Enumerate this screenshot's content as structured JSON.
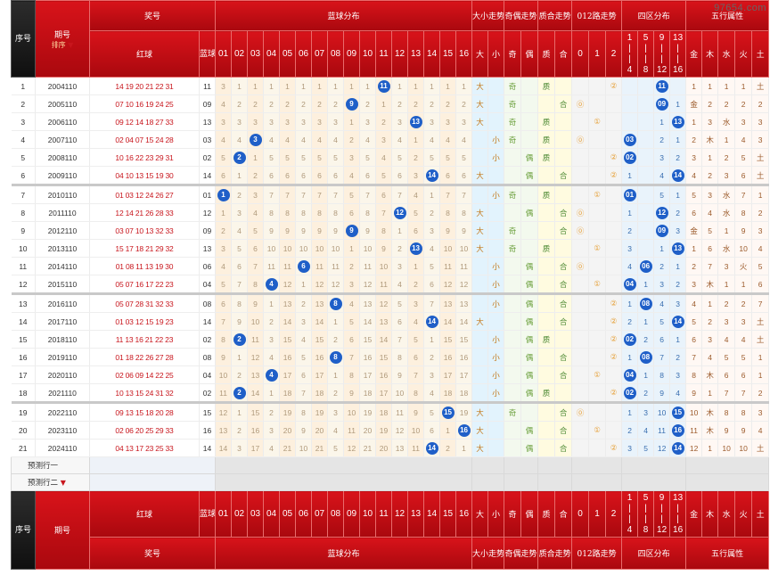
{
  "watermark": "97654.com",
  "header": {
    "seq": "序号",
    "period": "期号",
    "sort": "排序",
    "prize": "奖号",
    "blue_dist": "蓝球分布",
    "size": "大小走势",
    "oddeven": "奇偶走势",
    "prime": "质合走势",
    "road012": "012路走势",
    "zone4": "四区分布",
    "wuxing": "五行属性",
    "red": "红球",
    "blue": "蓝球",
    "big": "大",
    "small": "小",
    "odd": "奇",
    "even": "偶",
    "prime_c": "质",
    "comp_c": "合",
    "r0": "0",
    "r1": "1",
    "r2": "2",
    "z1a": "1",
    "z1b": "4",
    "z2a": "5",
    "z2b": "8",
    "z3a": "9",
    "z3b": "12",
    "z4a": "13",
    "z4b": "16",
    "e_gold": "金",
    "e_wood": "木",
    "e_water": "水",
    "e_fire": "火",
    "e_earth": "土",
    "cols": [
      "01",
      "02",
      "03",
      "04",
      "05",
      "06",
      "07",
      "08",
      "09",
      "10",
      "11",
      "12",
      "13",
      "14",
      "15",
      "16"
    ]
  },
  "rows": [
    {
      "seq": "1",
      "period": "2004110",
      "red": "14 19 20 21 22 31",
      "blue": "11",
      "cells": [
        "3",
        "1",
        "1",
        "1",
        "1",
        "1",
        "1",
        "1",
        "1",
        "1",
        "11",
        "1",
        "1",
        "1",
        "1",
        "1"
      ],
      "size": [
        "大",
        ""
      ],
      "oe": [
        "奇",
        ""
      ],
      "pc": [
        "质",
        ""
      ],
      "r012": [
        "",
        "",
        "②"
      ],
      "zone": [
        "",
        "",
        "11",
        ""
      ],
      "wx": [
        "1",
        "1",
        "1",
        "1",
        "土"
      ]
    },
    {
      "seq": "2",
      "period": "2005110",
      "red": "07 10 16 19 24 25",
      "blue": "09",
      "cells": [
        "4",
        "2",
        "2",
        "2",
        "2",
        "2",
        "2",
        "2",
        "9",
        "2",
        "1",
        "2",
        "2",
        "2",
        "2",
        "2"
      ],
      "size": [
        "大",
        ""
      ],
      "oe": [
        "奇",
        ""
      ],
      "pc": [
        "",
        "合"
      ],
      "r012": [
        "⓪",
        "",
        ""
      ],
      "zone": [
        "",
        "",
        "09",
        "1"
      ],
      "wx": [
        "金",
        "2",
        "2",
        "2",
        "2"
      ]
    },
    {
      "seq": "3",
      "period": "2006110",
      "red": "09 12 14 18 27 33",
      "blue": "13",
      "cells": [
        "3",
        "3",
        "3",
        "3",
        "3",
        "3",
        "3",
        "3",
        "1",
        "3",
        "2",
        "3",
        "13",
        "3",
        "3",
        "3"
      ],
      "size": [
        "大",
        ""
      ],
      "oe": [
        "奇",
        ""
      ],
      "pc": [
        "质",
        ""
      ],
      "r012": [
        "",
        "①",
        ""
      ],
      "zone": [
        "",
        "",
        "1",
        "13"
      ],
      "wx": [
        "1",
        "3",
        "水",
        "3",
        "3"
      ]
    },
    {
      "seq": "4",
      "period": "2007110",
      "red": "02 04 07 15 24 28",
      "blue": "03",
      "cells": [
        "4",
        "4",
        "3",
        "4",
        "4",
        "4",
        "4",
        "4",
        "2",
        "4",
        "3",
        "4",
        "1",
        "4",
        "4",
        "4"
      ],
      "size": [
        "",
        "小"
      ],
      "oe": [
        "奇",
        ""
      ],
      "pc": [
        "质",
        ""
      ],
      "r012": [
        "⓪",
        "",
        ""
      ],
      "zone": [
        "03",
        "",
        "2",
        "1"
      ],
      "wx": [
        "2",
        "木",
        "1",
        "4",
        "3"
      ]
    },
    {
      "seq": "5",
      "period": "2008110",
      "red": "10 16 22 23 29 31",
      "blue": "02",
      "cells": [
        "5",
        "2",
        "1",
        "5",
        "5",
        "5",
        "5",
        "5",
        "3",
        "5",
        "4",
        "5",
        "2",
        "5",
        "5",
        "5"
      ],
      "size": [
        "",
        "小"
      ],
      "oe": [
        "",
        "偶"
      ],
      "pc": [
        "质",
        ""
      ],
      "r012": [
        "",
        "",
        "②"
      ],
      "zone": [
        "02",
        "",
        "3",
        "2"
      ],
      "wx": [
        "3",
        "1",
        "2",
        "5",
        "土"
      ]
    },
    {
      "seq": "6",
      "period": "2009110",
      "red": "04 10 13 15 19 30",
      "blue": "14",
      "cells": [
        "6",
        "1",
        "2",
        "6",
        "6",
        "6",
        "6",
        "6",
        "4",
        "6",
        "5",
        "6",
        "3",
        "14",
        "6",
        "6"
      ],
      "size": [
        "大",
        ""
      ],
      "oe": [
        "",
        "偶"
      ],
      "pc": [
        "",
        "合"
      ],
      "r012": [
        "",
        "",
        "②"
      ],
      "zone": [
        "1",
        "",
        "4",
        "14"
      ],
      "wx": [
        "4",
        "2",
        "3",
        "6",
        "土"
      ]
    },
    {
      "seq": "7",
      "period": "2010110",
      "red": "01 03 12 24 26 27",
      "blue": "01",
      "cells": [
        "1",
        "2",
        "3",
        "7",
        "7",
        "7",
        "7",
        "7",
        "5",
        "7",
        "6",
        "7",
        "4",
        "1",
        "7",
        "7"
      ],
      "size": [
        "",
        "小"
      ],
      "oe": [
        "奇",
        ""
      ],
      "pc": [
        "质",
        ""
      ],
      "r012": [
        "",
        "①",
        ""
      ],
      "zone": [
        "01",
        "",
        "5",
        "1"
      ],
      "wx": [
        "5",
        "3",
        "水",
        "7",
        "1"
      ]
    },
    {
      "seq": "8",
      "period": "2011110",
      "red": "12 14 21 26 28 33",
      "blue": "12",
      "cells": [
        "1",
        "3",
        "4",
        "8",
        "8",
        "8",
        "8",
        "8",
        "6",
        "8",
        "7",
        "12",
        "5",
        "2",
        "8",
        "8"
      ],
      "size": [
        "大",
        ""
      ],
      "oe": [
        "",
        "偶"
      ],
      "pc": [
        "",
        "合"
      ],
      "r012": [
        "⓪",
        "",
        ""
      ],
      "zone": [
        "1",
        "",
        "12",
        "2"
      ],
      "wx": [
        "6",
        "4",
        "水",
        "8",
        "2"
      ]
    },
    {
      "seq": "9",
      "period": "2012110",
      "red": "03 07 10 13 32 33",
      "blue": "09",
      "cells": [
        "2",
        "4",
        "5",
        "9",
        "9",
        "9",
        "9",
        "9",
        "9",
        "9",
        "8",
        "1",
        "6",
        "3",
        "9",
        "9"
      ],
      "size": [
        "大",
        ""
      ],
      "oe": [
        "奇",
        ""
      ],
      "pc": [
        "",
        "合"
      ],
      "r012": [
        "⓪",
        "",
        ""
      ],
      "zone": [
        "2",
        "",
        "09",
        "3"
      ],
      "wx": [
        "金",
        "5",
        "1",
        "9",
        "3"
      ]
    },
    {
      "seq": "10",
      "period": "2013110",
      "red": "15 17 18 21 29 32",
      "blue": "13",
      "cells": [
        "3",
        "5",
        "6",
        "10",
        "10",
        "10",
        "10",
        "10",
        "1",
        "10",
        "9",
        "2",
        "13",
        "4",
        "10",
        "10"
      ],
      "size": [
        "大",
        ""
      ],
      "oe": [
        "奇",
        ""
      ],
      "pc": [
        "质",
        ""
      ],
      "r012": [
        "",
        "①",
        ""
      ],
      "zone": [
        "3",
        "",
        "1",
        "13"
      ],
      "wx": [
        "1",
        "6",
        "水",
        "10",
        "4"
      ]
    },
    {
      "seq": "11",
      "period": "2014110",
      "red": "01 08 11 13 19 30",
      "blue": "06",
      "cells": [
        "4",
        "6",
        "7",
        "11",
        "11",
        "6",
        "11",
        "11",
        "2",
        "11",
        "10",
        "3",
        "1",
        "5",
        "11",
        "11"
      ],
      "size": [
        "",
        "小"
      ],
      "oe": [
        "",
        "偶"
      ],
      "pc": [
        "",
        "合"
      ],
      "r012": [
        "⓪",
        "",
        ""
      ],
      "zone": [
        "4",
        "06",
        "2",
        "1"
      ],
      "wx": [
        "2",
        "7",
        "3",
        "火",
        "5"
      ]
    },
    {
      "seq": "12",
      "period": "2015110",
      "red": "05 07 16 17 22 23",
      "blue": "04",
      "cells": [
        "5",
        "7",
        "8",
        "4",
        "12",
        "1",
        "12",
        "12",
        "3",
        "12",
        "11",
        "4",
        "2",
        "6",
        "12",
        "12"
      ],
      "size": [
        "",
        "小"
      ],
      "oe": [
        "",
        "偶"
      ],
      "pc": [
        "",
        "合"
      ],
      "r012": [
        "",
        "①",
        ""
      ],
      "zone": [
        "04",
        "1",
        "3",
        "2"
      ],
      "wx": [
        "3",
        "木",
        "1",
        "1",
        "6"
      ]
    },
    {
      "seq": "13",
      "period": "2016110",
      "red": "05 07 28 31 32 33",
      "blue": "08",
      "cells": [
        "6",
        "8",
        "9",
        "1",
        "13",
        "2",
        "13",
        "8",
        "4",
        "13",
        "12",
        "5",
        "3",
        "7",
        "13",
        "13"
      ],
      "size": [
        "",
        "小"
      ],
      "oe": [
        "",
        "偶"
      ],
      "pc": [
        "",
        "合"
      ],
      "r012": [
        "",
        "",
        "②"
      ],
      "zone": [
        "1",
        "08",
        "4",
        "3"
      ],
      "wx": [
        "4",
        "1",
        "2",
        "2",
        "7"
      ]
    },
    {
      "seq": "14",
      "period": "2017110",
      "red": "01 03 12 15 19 23",
      "blue": "14",
      "cells": [
        "7",
        "9",
        "10",
        "2",
        "14",
        "3",
        "14",
        "1",
        "5",
        "14",
        "13",
        "6",
        "4",
        "14",
        "14",
        "14"
      ],
      "size": [
        "大",
        ""
      ],
      "oe": [
        "",
        "偶"
      ],
      "pc": [
        "",
        "合"
      ],
      "r012": [
        "",
        "",
        "②"
      ],
      "zone": [
        "2",
        "1",
        "5",
        "14"
      ],
      "wx": [
        "5",
        "2",
        "3",
        "3",
        "土"
      ]
    },
    {
      "seq": "15",
      "period": "2018110",
      "red": "11 13 16 21 22 23",
      "blue": "02",
      "cells": [
        "8",
        "2",
        "11",
        "3",
        "15",
        "4",
        "15",
        "2",
        "6",
        "15",
        "14",
        "7",
        "5",
        "1",
        "15",
        "15"
      ],
      "size": [
        "",
        "小"
      ],
      "oe": [
        "",
        "偶"
      ],
      "pc": [
        "质",
        ""
      ],
      "r012": [
        "",
        "",
        "②"
      ],
      "zone": [
        "02",
        "2",
        "6",
        "1"
      ],
      "wx": [
        "6",
        "3",
        "4",
        "4",
        "土"
      ]
    },
    {
      "seq": "16",
      "period": "2019110",
      "red": "01 18 22 26 27 28",
      "blue": "08",
      "cells": [
        "9",
        "1",
        "12",
        "4",
        "16",
        "5",
        "16",
        "8",
        "7",
        "16",
        "15",
        "8",
        "6",
        "2",
        "16",
        "16"
      ],
      "size": [
        "",
        "小"
      ],
      "oe": [
        "",
        "偶"
      ],
      "pc": [
        "",
        "合"
      ],
      "r012": [
        "",
        "",
        "②"
      ],
      "zone": [
        "1",
        "08",
        "7",
        "2"
      ],
      "wx": [
        "7",
        "4",
        "5",
        "5",
        "1"
      ]
    },
    {
      "seq": "17",
      "period": "2020110",
      "red": "02 06 09 14 22 25",
      "blue": "04",
      "cells": [
        "10",
        "2",
        "13",
        "4",
        "17",
        "6",
        "17",
        "1",
        "8",
        "17",
        "16",
        "9",
        "7",
        "3",
        "17",
        "17"
      ],
      "size": [
        "",
        "小"
      ],
      "oe": [
        "",
        "偶"
      ],
      "pc": [
        "",
        "合"
      ],
      "r012": [
        "",
        "①",
        ""
      ],
      "zone": [
        "04",
        "1",
        "8",
        "3"
      ],
      "wx": [
        "8",
        "木",
        "6",
        "6",
        "1"
      ]
    },
    {
      "seq": "18",
      "period": "2021110",
      "red": "10 13 15 24 31 32",
      "blue": "02",
      "cells": [
        "11",
        "2",
        "14",
        "1",
        "18",
        "7",
        "18",
        "2",
        "9",
        "18",
        "17",
        "10",
        "8",
        "4",
        "18",
        "18"
      ],
      "size": [
        "",
        "小"
      ],
      "oe": [
        "",
        "偶"
      ],
      "pc": [
        "质",
        ""
      ],
      "r012": [
        "",
        "",
        "②"
      ],
      "zone": [
        "02",
        "2",
        "9",
        "4"
      ],
      "wx": [
        "9",
        "1",
        "7",
        "7",
        "2"
      ]
    },
    {
      "seq": "19",
      "period": "2022110",
      "red": "09 13 15 18 20 28",
      "blue": "15",
      "cells": [
        "12",
        "1",
        "15",
        "2",
        "19",
        "8",
        "19",
        "3",
        "10",
        "19",
        "18",
        "11",
        "9",
        "5",
        "15",
        "19"
      ],
      "size": [
        "大",
        ""
      ],
      "oe": [
        "奇",
        ""
      ],
      "pc": [
        "",
        "合"
      ],
      "r012": [
        "⓪",
        "",
        ""
      ],
      "zone": [
        "1",
        "3",
        "10",
        "15"
      ],
      "wx": [
        "10",
        "木",
        "8",
        "8",
        "3"
      ]
    },
    {
      "seq": "20",
      "period": "2023110",
      "red": "02 06 20 25 29 33",
      "blue": "16",
      "cells": [
        "13",
        "2",
        "16",
        "3",
        "20",
        "9",
        "20",
        "4",
        "11",
        "20",
        "19",
        "12",
        "10",
        "6",
        "1",
        "16"
      ],
      "size": [
        "大",
        ""
      ],
      "oe": [
        "",
        "偶"
      ],
      "pc": [
        "",
        "合"
      ],
      "r012": [
        "",
        "①",
        ""
      ],
      "zone": [
        "2",
        "4",
        "11",
        "16"
      ],
      "wx": [
        "11",
        "木",
        "9",
        "9",
        "4"
      ]
    },
    {
      "seq": "21",
      "period": "2024110",
      "red": "04 13 17 23 25 33",
      "blue": "14",
      "cells": [
        "14",
        "3",
        "17",
        "4",
        "21",
        "10",
        "21",
        "5",
        "12",
        "21",
        "20",
        "13",
        "11",
        "14",
        "2",
        "1"
      ],
      "size": [
        "大",
        ""
      ],
      "oe": [
        "",
        "偶"
      ],
      "pc": [
        "",
        "合"
      ],
      "r012": [
        "",
        "",
        "②"
      ],
      "zone": [
        "3",
        "5",
        "12",
        "14"
      ],
      "wx": [
        "12",
        "1",
        "10",
        "10",
        "土"
      ]
    }
  ],
  "predict": [
    "预测行一",
    "预测行二"
  ]
}
